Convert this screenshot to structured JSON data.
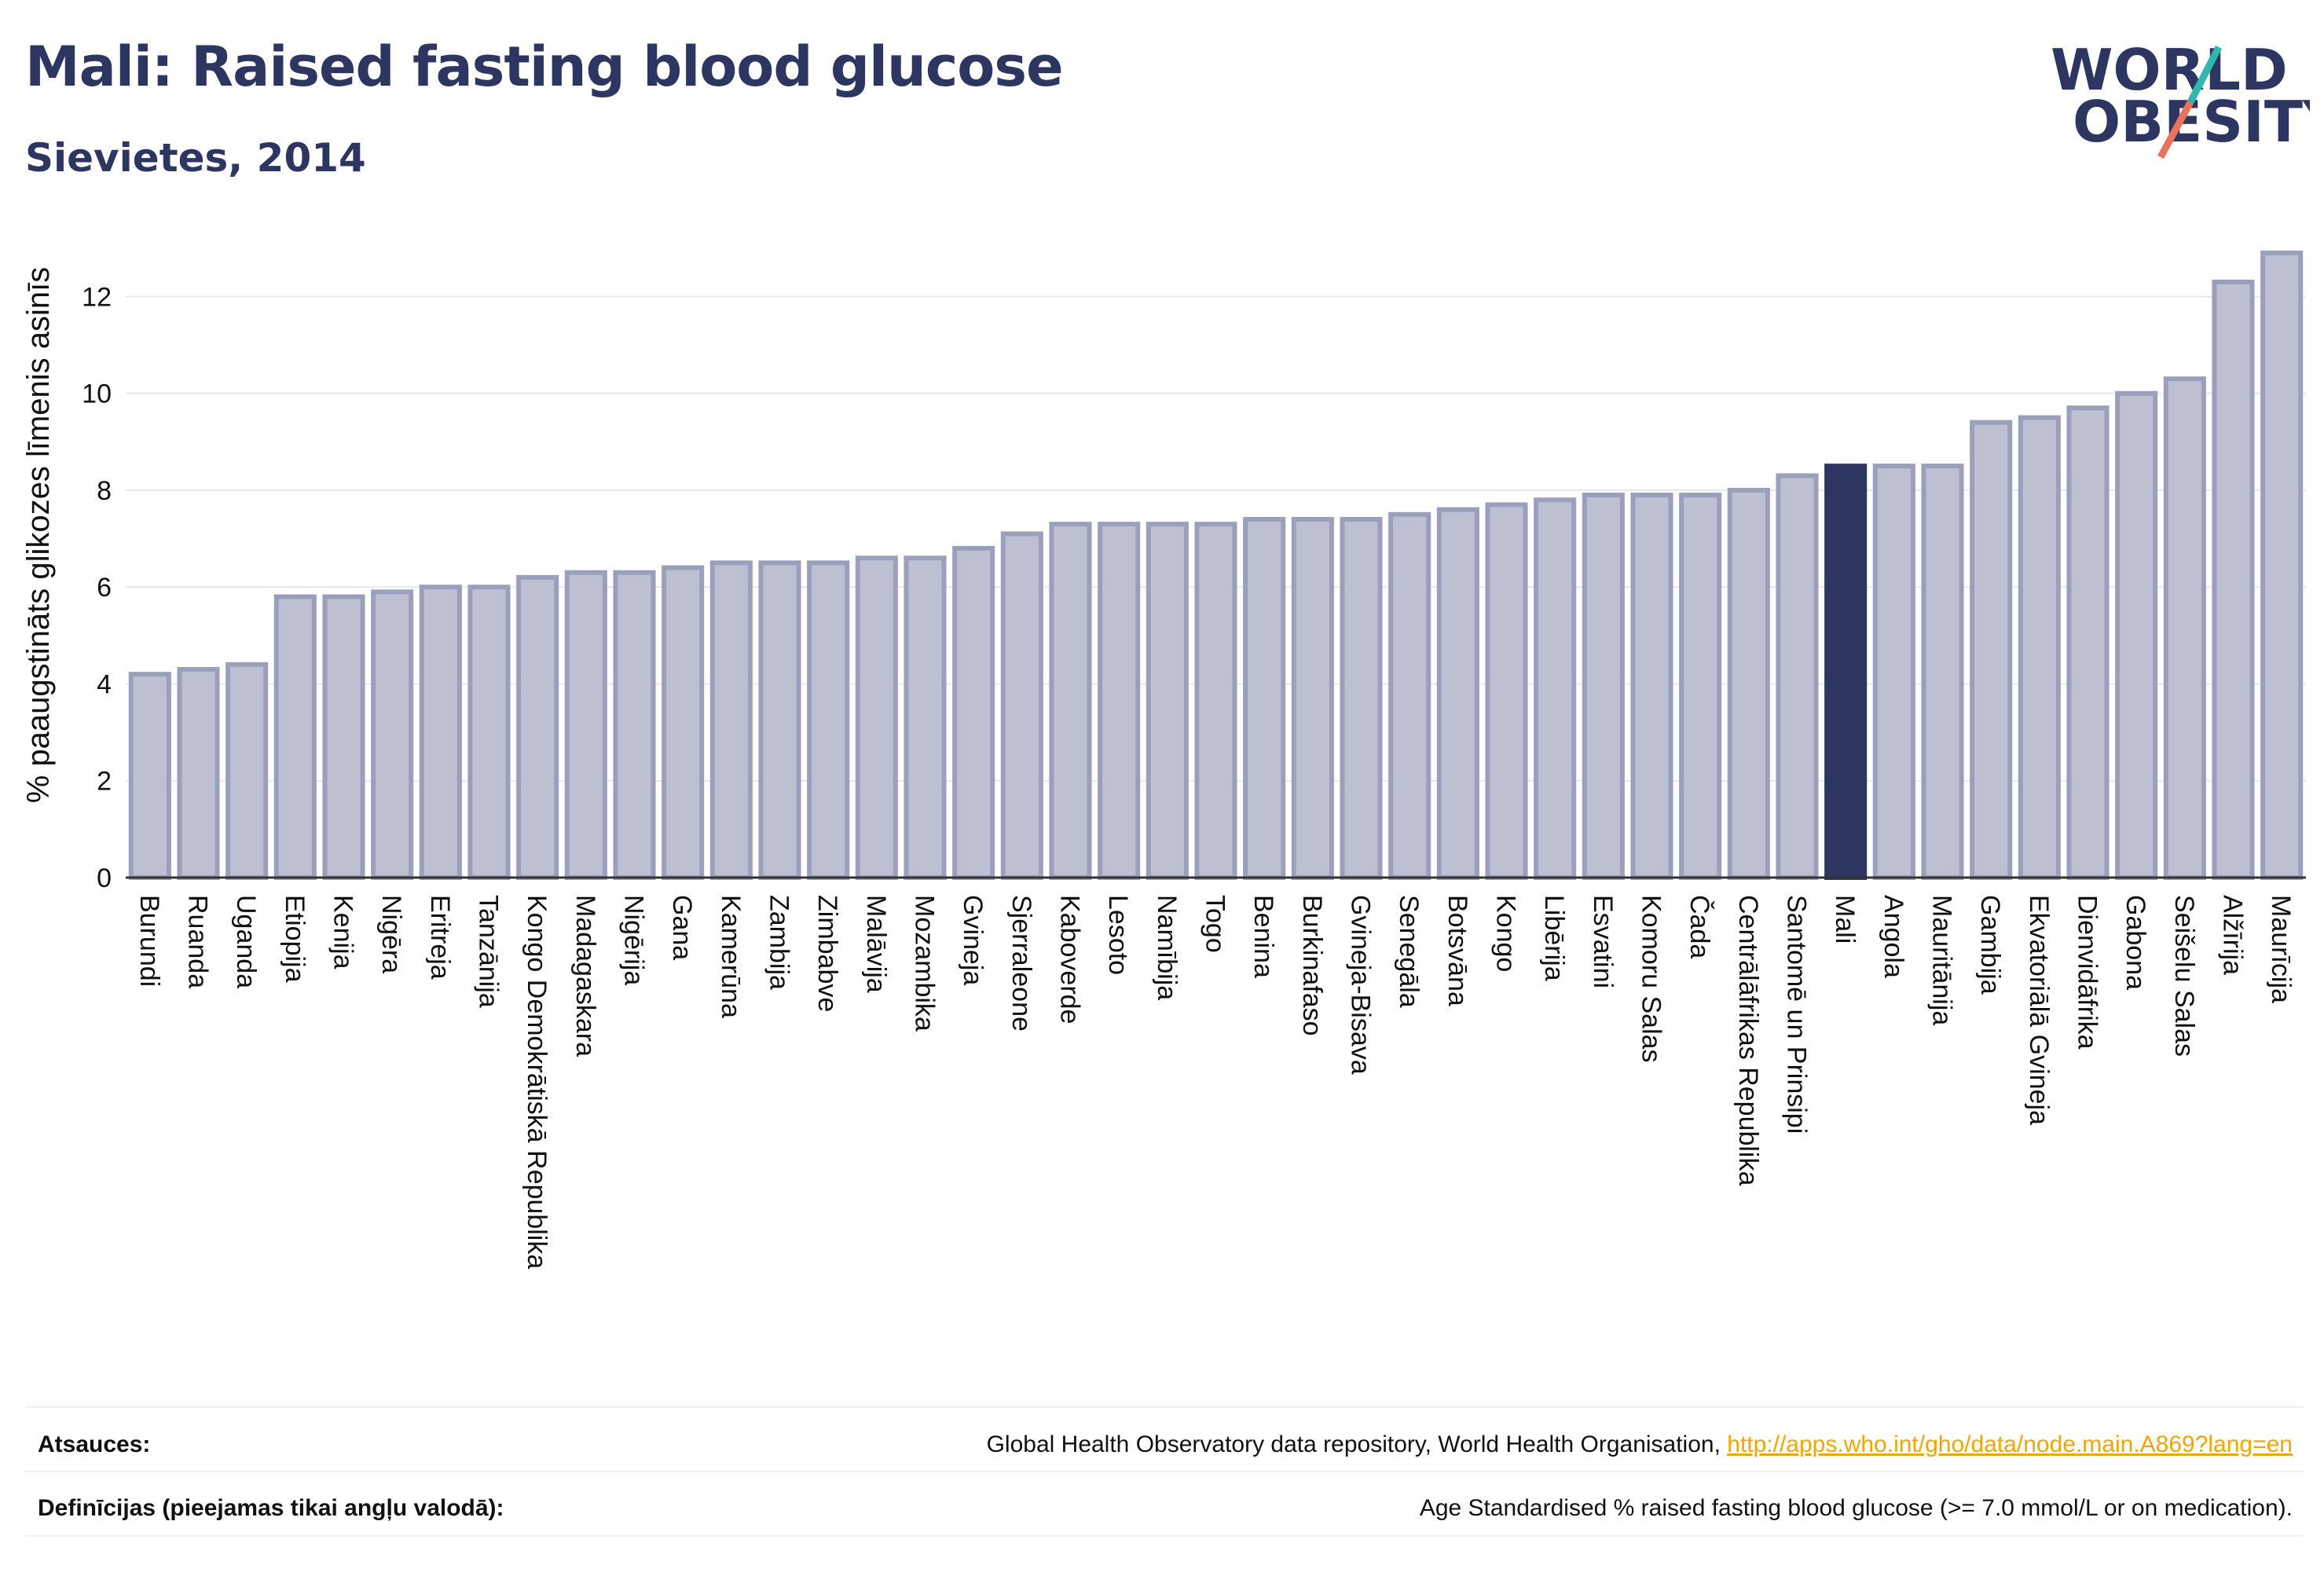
{
  "header": {
    "title": "Mali: Raised fasting blood glucose",
    "subtitle": "Sievietes, 2014"
  },
  "logo": {
    "line1": "WORLD",
    "line2": "OBESITY"
  },
  "chart_data": {
    "type": "bar",
    "ylabel": "% paaugstināts glikozes līmenis asinīs",
    "xlabel": "",
    "ylim": [
      0,
      13.5
    ],
    "yticks": [
      0,
      2,
      4,
      6,
      8,
      10,
      12
    ],
    "grid": true,
    "highlight": "Mali",
    "colors": {
      "bar": "#bcc0d0",
      "bar_edge": "#9aa0bb",
      "highlight": "#2d3561",
      "grid": "#e6e8ef"
    },
    "categories": [
      "Burundi",
      "Ruanda",
      "Uganda",
      "Etiopija",
      "Kenija",
      "Nigēra",
      "Eritreja",
      "Tanzānija",
      "Kongo Demokrātiskā Republika",
      "Madagaskara",
      "Nigērija",
      "Gana",
      "Kamerūna",
      "Zambija",
      "Zimbabve",
      "Malāvija",
      "Mozambika",
      "Gvineja",
      "Sjerraleone",
      "Kaboverde",
      "Lesoto",
      "Namībija",
      "Togo",
      "Benina",
      "Burkinafaso",
      "Gvineja-Bisava",
      "Senegāla",
      "Botsvāna",
      "Kongo",
      "Libērija",
      "Esvatini",
      "Komoru Salas",
      "Čada",
      "Centrālāfrikas Republika",
      "Santomē un Prinsipi",
      "Mali",
      "Angola",
      "Mauritānija",
      "Gambija",
      "Ekvatoriālā Gvineja",
      "Dienvidāfrika",
      "Gabona",
      "Seišelu Salas",
      "Alžīrija",
      "Maurīcija"
    ],
    "values": [
      4.2,
      4.3,
      4.4,
      5.8,
      5.8,
      5.9,
      6.0,
      6.0,
      6.2,
      6.3,
      6.3,
      6.4,
      6.5,
      6.5,
      6.5,
      6.6,
      6.6,
      6.8,
      7.1,
      7.3,
      7.3,
      7.3,
      7.3,
      7.4,
      7.4,
      7.4,
      7.5,
      7.6,
      7.7,
      7.8,
      7.9,
      7.9,
      7.9,
      8.0,
      8.3,
      8.5,
      8.5,
      8.5,
      9.4,
      9.5,
      9.7,
      10.0,
      10.3,
      12.3,
      12.9
    ]
  },
  "footer": {
    "sources_label": "Atsauces:",
    "sources_text": "Global Health Observatory data repository, World Health Organisation, ",
    "sources_link": "http://apps.who.int/gho/data/node.main.A869?lang=en",
    "definitions_label": "Definīcijas (pieejamas tikai angļu valodā):",
    "definitions_text": "Age Standardised % raised fasting blood glucose (>= 7.0 mmol/L or on medication)."
  }
}
